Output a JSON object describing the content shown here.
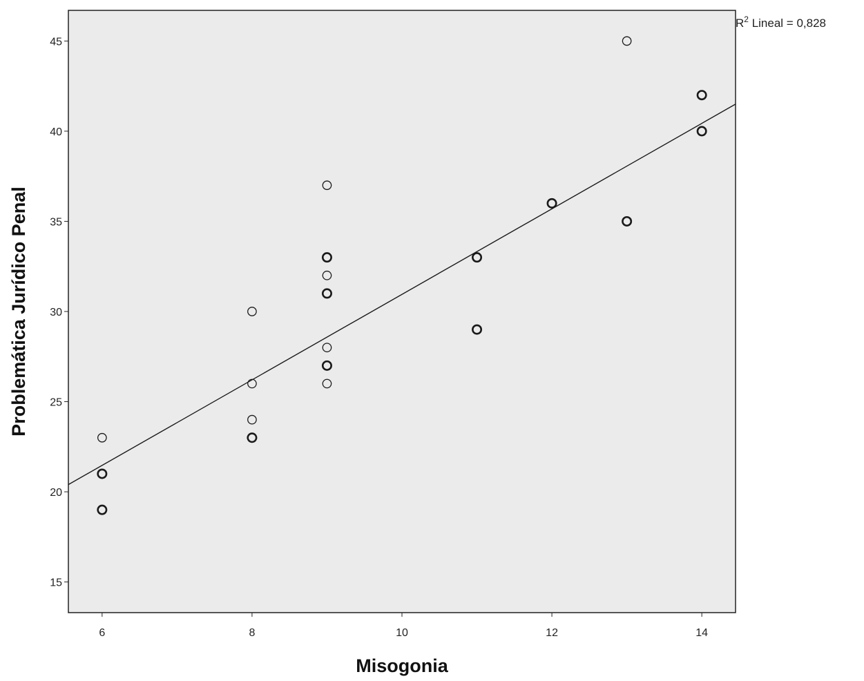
{
  "chart_data": {
    "type": "scatter",
    "xlabel": "Misogonia",
    "ylabel": "Problemática Jurídico Penal",
    "xlim": [
      5.55,
      14.45
    ],
    "ylim": [
      13.3,
      46.7
    ],
    "x_ticks": [
      6,
      8,
      10,
      12,
      14
    ],
    "y_ticks": [
      15,
      20,
      25,
      30,
      35,
      40,
      45
    ],
    "grid": false,
    "colors": {
      "plot_background": "#ebebeb",
      "marker": "#1a1a1a",
      "line": "#1a1a1a"
    },
    "fit_line": {
      "type": "linear",
      "x": [
        5.55,
        14.45
      ],
      "y": [
        20.4,
        41.5
      ],
      "label_prefix": "R",
      "label_sup": "2",
      "label_suffix": " Lineal = 0,828"
    },
    "points": [
      {
        "x": 6,
        "y": 23,
        "bold": false
      },
      {
        "x": 6,
        "y": 21,
        "bold": true
      },
      {
        "x": 6,
        "y": 19,
        "bold": true
      },
      {
        "x": 8,
        "y": 30,
        "bold": false
      },
      {
        "x": 8,
        "y": 26,
        "bold": false
      },
      {
        "x": 8,
        "y": 24,
        "bold": false
      },
      {
        "x": 8,
        "y": 23,
        "bold": true
      },
      {
        "x": 9,
        "y": 37,
        "bold": false
      },
      {
        "x": 9,
        "y": 33,
        "bold": true
      },
      {
        "x": 9,
        "y": 32,
        "bold": false
      },
      {
        "x": 9,
        "y": 31,
        "bold": true
      },
      {
        "x": 9,
        "y": 28,
        "bold": false
      },
      {
        "x": 9,
        "y": 27,
        "bold": true
      },
      {
        "x": 9,
        "y": 26,
        "bold": false
      },
      {
        "x": 11,
        "y": 33,
        "bold": true
      },
      {
        "x": 11,
        "y": 29,
        "bold": true
      },
      {
        "x": 12,
        "y": 36,
        "bold": true
      },
      {
        "x": 13,
        "y": 45,
        "bold": false
      },
      {
        "x": 13,
        "y": 35,
        "bold": true
      },
      {
        "x": 14,
        "y": 42,
        "bold": true
      },
      {
        "x": 14,
        "y": 40,
        "bold": true
      }
    ]
  }
}
